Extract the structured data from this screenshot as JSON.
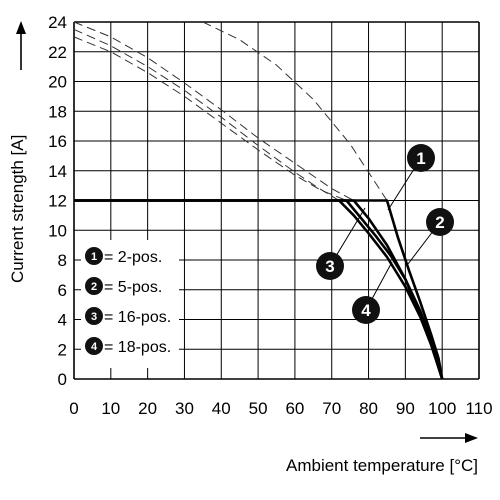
{
  "chart_data": {
    "type": "line",
    "title": "",
    "xlabel": "Ambient temperature [°C]",
    "ylabel": "Current strength [A]",
    "xlim": [
      0,
      110
    ],
    "ylim": [
      0,
      24
    ],
    "grid": true,
    "x_ticks": [
      "0",
      "10",
      "20",
      "30",
      "40",
      "50",
      "60",
      "70",
      "80",
      "90",
      "100",
      "110"
    ],
    "y_ticks": [
      "0",
      "2",
      "4",
      "6",
      "8",
      "10",
      "12",
      "14",
      "16",
      "18",
      "20",
      "22",
      "24"
    ],
    "legend": [
      {
        "id": "1",
        "label": "= 2-pos."
      },
      {
        "id": "2",
        "label": "= 5-pos."
      },
      {
        "id": "3",
        "label": "= 16-pos."
      },
      {
        "id": "4",
        "label": "= 18-pos."
      }
    ],
    "legend_position": "bottom-left",
    "series": [
      {
        "id": "1",
        "limit": 12,
        "derating": [
          [
            0,
            12
          ],
          [
            85,
            12
          ],
          [
            88,
            9.5
          ],
          [
            91,
            7.3
          ],
          [
            94,
            5.2
          ],
          [
            97,
            3.0
          ],
          [
            99,
            1.4
          ],
          [
            100,
            0
          ]
        ],
        "unlimited": [
          [
            35,
            24
          ],
          [
            45,
            22.8
          ],
          [
            55,
            21.1
          ],
          [
            65,
            18.8
          ],
          [
            75,
            15.8
          ],
          [
            85,
            12
          ],
          [
            88,
            9.5
          ],
          [
            91,
            7.3
          ],
          [
            94,
            5.2
          ],
          [
            97,
            3.0
          ],
          [
            99,
            1.4
          ],
          [
            100,
            0
          ]
        ]
      },
      {
        "id": "2",
        "limit": 12,
        "derating": [
          [
            0,
            12
          ],
          [
            76,
            12
          ],
          [
            80,
            10.8
          ],
          [
            85,
            9.0
          ],
          [
            90,
            6.7
          ],
          [
            94,
            4.3
          ],
          [
            97,
            2.4
          ],
          [
            100,
            0
          ]
        ],
        "unlimited": [
          [
            0,
            24
          ],
          [
            10,
            23.0
          ],
          [
            20,
            21.6
          ],
          [
            30,
            19.9
          ],
          [
            40,
            18.1
          ],
          [
            50,
            16.2
          ],
          [
            60,
            14.5
          ],
          [
            70,
            12.8
          ],
          [
            76,
            12
          ]
        ]
      },
      {
        "id": "3",
        "limit": 12,
        "derating": [
          [
            0,
            12
          ],
          [
            72,
            12
          ],
          [
            76,
            11.0
          ],
          [
            80,
            9.8
          ],
          [
            85,
            8.2
          ],
          [
            90,
            6.2
          ],
          [
            94,
            4.2
          ],
          [
            97,
            2.3
          ],
          [
            100,
            0
          ]
        ],
        "unlimited": [
          [
            0,
            23.5
          ],
          [
            10,
            22.4
          ],
          [
            20,
            21.0
          ],
          [
            30,
            19.4
          ],
          [
            40,
            17.6
          ],
          [
            50,
            15.7
          ],
          [
            60,
            13.9
          ],
          [
            66,
            12.9
          ],
          [
            72,
            12
          ]
        ]
      },
      {
        "id": "4",
        "limit": 12,
        "derating": [
          [
            0,
            12
          ],
          [
            74,
            12
          ],
          [
            78,
            10.8
          ],
          [
            82,
            9.6
          ],
          [
            86,
            8.3
          ],
          [
            90,
            6.7
          ],
          [
            94,
            4.6
          ],
          [
            97,
            2.6
          ],
          [
            100,
            0
          ]
        ],
        "unlimited": [
          [
            0,
            23.0
          ],
          [
            10,
            22.0
          ],
          [
            20,
            20.6
          ],
          [
            30,
            19.0
          ],
          [
            40,
            17.2
          ],
          [
            50,
            15.4
          ],
          [
            60,
            13.7
          ],
          [
            67,
            12.7
          ],
          [
            74,
            12
          ]
        ]
      }
    ],
    "callouts": [
      {
        "id": "1"
      },
      {
        "id": "2"
      },
      {
        "id": "3"
      },
      {
        "id": "4"
      }
    ]
  }
}
